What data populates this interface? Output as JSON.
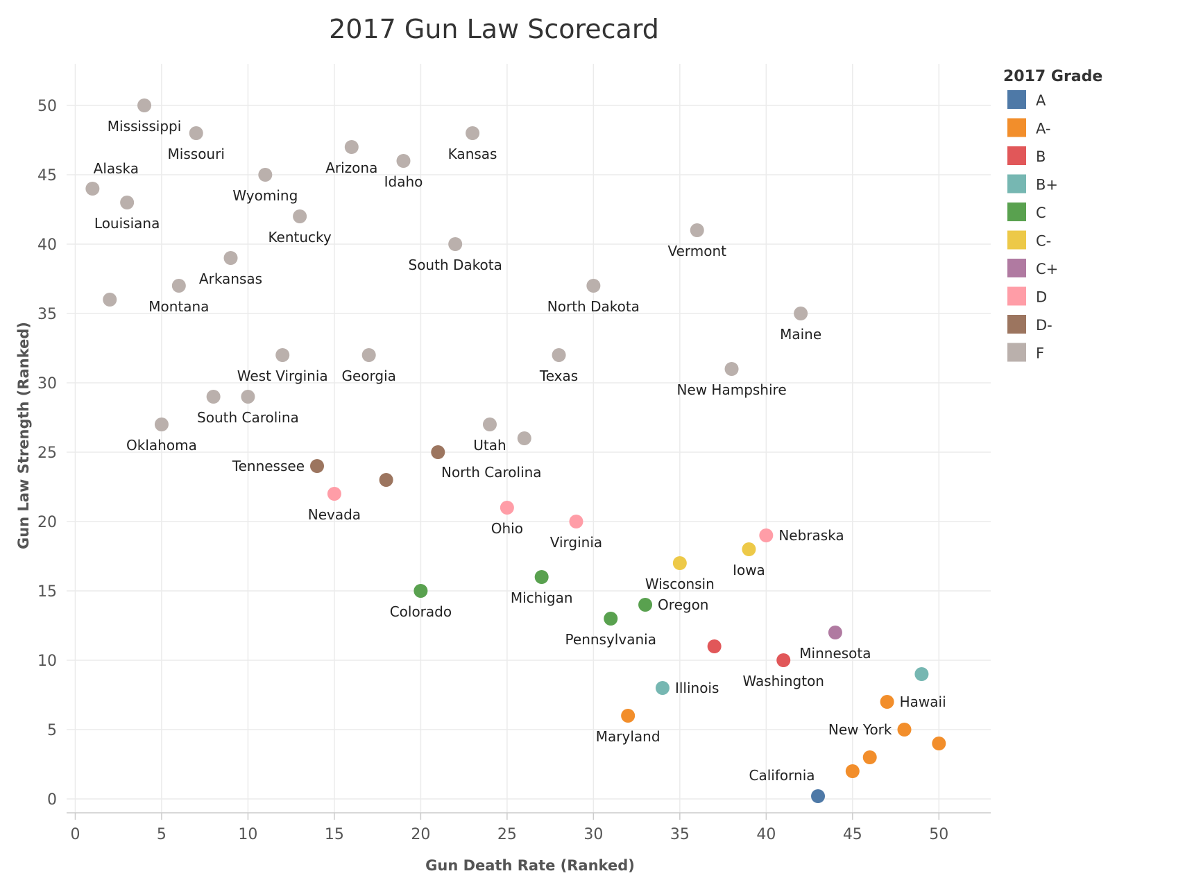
{
  "chart_data": {
    "type": "scatter",
    "title": "2017 Gun Law Scorecard",
    "xlabel": "Gun Death Rate (Ranked)",
    "ylabel": "Gun Law Strength (Ranked)",
    "xlim": [
      -0.5,
      53
    ],
    "ylim": [
      -1,
      53
    ],
    "xticks": [
      0,
      5,
      10,
      15,
      20,
      25,
      30,
      35,
      40,
      45,
      50
    ],
    "yticks": [
      0,
      5,
      10,
      15,
      20,
      25,
      30,
      35,
      40,
      45,
      50
    ],
    "grid": true,
    "legend": {
      "title": "2017 Grade",
      "position": "right",
      "items": [
        {
          "grade": "A",
          "color": "#4e79a7"
        },
        {
          "grade": "A-",
          "color": "#f28e2b"
        },
        {
          "grade": "B",
          "color": "#e15759"
        },
        {
          "grade": "B+",
          "color": "#76b7b2"
        },
        {
          "grade": "C",
          "color": "#59a14f"
        },
        {
          "grade": "C-",
          "color": "#edc948"
        },
        {
          "grade": "C+",
          "color": "#b07aa1"
        },
        {
          "grade": "D",
          "color": "#ff9da7"
        },
        {
          "grade": "D-",
          "color": "#9c755f"
        },
        {
          "grade": "F",
          "color": "#bab0ac"
        }
      ]
    },
    "points": [
      {
        "label": "Mississippi",
        "x": 4,
        "y": 50,
        "grade": "F",
        "pos": "below"
      },
      {
        "label": "Missouri",
        "x": 7,
        "y": 48,
        "grade": "F",
        "pos": "below"
      },
      {
        "label": "Alaska",
        "x": 1,
        "y": 44,
        "grade": "F",
        "pos": "aboveright"
      },
      {
        "label": "Louisiana",
        "x": 3,
        "y": 43,
        "grade": "F",
        "pos": "below"
      },
      {
        "label": "Wyoming",
        "x": 11,
        "y": 45,
        "grade": "F",
        "pos": "below"
      },
      {
        "label": "Arizona",
        "x": 16,
        "y": 47,
        "grade": "F",
        "pos": "below"
      },
      {
        "label": "Idaho",
        "x": 19,
        "y": 46,
        "grade": "F",
        "pos": "below"
      },
      {
        "label": "Kansas",
        "x": 23,
        "y": 48,
        "grade": "F",
        "pos": "below"
      },
      {
        "label": "Kentucky",
        "x": 13,
        "y": 42,
        "grade": "F",
        "pos": "below"
      },
      {
        "label": "Arkansas",
        "x": 9,
        "y": 39,
        "grade": "F",
        "pos": "below"
      },
      {
        "label": "Montana",
        "x": 6,
        "y": 37,
        "grade": "F",
        "pos": "below"
      },
      {
        "label": "",
        "x": 2,
        "y": 36,
        "grade": "F",
        "pos": "none"
      },
      {
        "label": "South Dakota",
        "x": 22,
        "y": 40,
        "grade": "F",
        "pos": "below"
      },
      {
        "label": "Vermont",
        "x": 36,
        "y": 41,
        "grade": "F",
        "pos": "below"
      },
      {
        "label": "North Dakota",
        "x": 30,
        "y": 37,
        "grade": "F",
        "pos": "below"
      },
      {
        "label": "Maine",
        "x": 42,
        "y": 35,
        "grade": "F",
        "pos": "below"
      },
      {
        "label": "West Virginia",
        "x": 12,
        "y": 32,
        "grade": "F",
        "pos": "below"
      },
      {
        "label": "Georgia",
        "x": 17,
        "y": 32,
        "grade": "F",
        "pos": "below"
      },
      {
        "label": "Texas",
        "x": 28,
        "y": 32,
        "grade": "F",
        "pos": "below"
      },
      {
        "label": "New Hampshire",
        "x": 38,
        "y": 31,
        "grade": "F",
        "pos": "below"
      },
      {
        "label": "",
        "x": 8,
        "y": 29,
        "grade": "F",
        "pos": "none"
      },
      {
        "label": "South Carolina",
        "x": 10,
        "y": 29,
        "grade": "F",
        "pos": "below"
      },
      {
        "label": "Oklahoma",
        "x": 5,
        "y": 27,
        "grade": "F",
        "pos": "below"
      },
      {
        "label": "Utah",
        "x": 24,
        "y": 27,
        "grade": "F",
        "pos": "below"
      },
      {
        "label": "",
        "x": 26,
        "y": 26,
        "grade": "F",
        "pos": "none"
      },
      {
        "label": "North Carolina",
        "x": 21,
        "y": 25,
        "grade": "D-",
        "pos": "belowright"
      },
      {
        "label": "Tennessee",
        "x": 14,
        "y": 24,
        "grade": "D-",
        "pos": "left"
      },
      {
        "label": "",
        "x": 18,
        "y": 23,
        "grade": "D-",
        "pos": "none"
      },
      {
        "label": "Nevada",
        "x": 15,
        "y": 22,
        "grade": "D",
        "pos": "below"
      },
      {
        "label": "Ohio",
        "x": 25,
        "y": 21,
        "grade": "D",
        "pos": "below"
      },
      {
        "label": "Virginia",
        "x": 29,
        "y": 20,
        "grade": "D",
        "pos": "below"
      },
      {
        "label": "Nebraska",
        "x": 40,
        "y": 19,
        "grade": "D",
        "pos": "right"
      },
      {
        "label": "Iowa",
        "x": 39,
        "y": 18,
        "grade": "C-",
        "pos": "below"
      },
      {
        "label": "Wisconsin",
        "x": 35,
        "y": 17,
        "grade": "C-",
        "pos": "below"
      },
      {
        "label": "Michigan",
        "x": 27,
        "y": 16,
        "grade": "C",
        "pos": "below"
      },
      {
        "label": "Colorado",
        "x": 20,
        "y": 15,
        "grade": "C",
        "pos": "below"
      },
      {
        "label": "Oregon",
        "x": 33,
        "y": 14,
        "grade": "C",
        "pos": "right"
      },
      {
        "label": "Pennsylvania",
        "x": 31,
        "y": 13,
        "grade": "C",
        "pos": "below"
      },
      {
        "label": "",
        "x": 37,
        "y": 11,
        "grade": "B",
        "pos": "none"
      },
      {
        "label": "Minnesota",
        "x": 44,
        "y": 12,
        "grade": "C+",
        "pos": "below"
      },
      {
        "label": "Washington",
        "x": 41,
        "y": 10,
        "grade": "B",
        "pos": "below"
      },
      {
        "label": "",
        "x": 49,
        "y": 9,
        "grade": "B+",
        "pos": "none"
      },
      {
        "label": "Illinois",
        "x": 34,
        "y": 8,
        "grade": "B+",
        "pos": "right"
      },
      {
        "label": "Hawaii",
        "x": 47,
        "y": 7,
        "grade": "A-",
        "pos": "right"
      },
      {
        "label": "Maryland",
        "x": 32,
        "y": 6,
        "grade": "A-",
        "pos": "below"
      },
      {
        "label": "New York",
        "x": 48,
        "y": 5,
        "grade": "A-",
        "pos": "left"
      },
      {
        "label": "",
        "x": 50,
        "y": 4,
        "grade": "A-",
        "pos": "none"
      },
      {
        "label": "",
        "x": 46,
        "y": 3,
        "grade": "A-",
        "pos": "none"
      },
      {
        "label": "",
        "x": 45,
        "y": 2,
        "grade": "A-",
        "pos": "none"
      },
      {
        "label": "California",
        "x": 43,
        "y": 0.2,
        "grade": "A",
        "pos": "aboveleft"
      }
    ]
  }
}
